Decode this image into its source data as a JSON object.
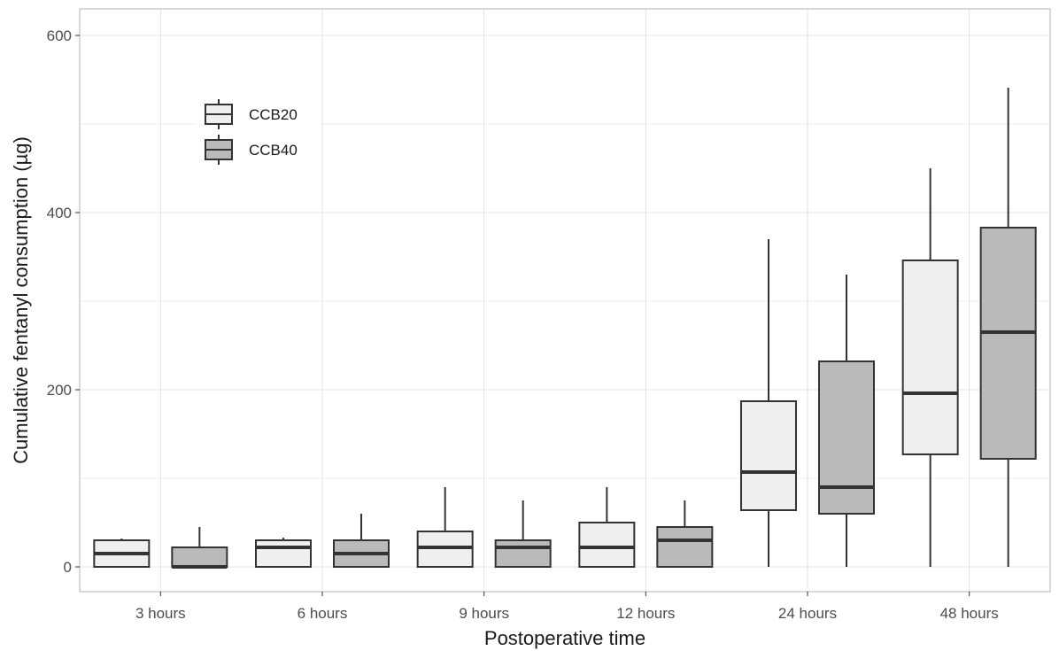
{
  "chart_data": {
    "type": "boxplot",
    "xlabel": "Postoperative time",
    "ylabel": "Cumulative fentanyl consumption (µg)",
    "categories": [
      "3 hours",
      "6 hours",
      "9 hours",
      "12 hours",
      "24 hours",
      "48 hours"
    ],
    "ylim": [
      -28,
      630
    ],
    "yticks": [
      0,
      200,
      400,
      600
    ],
    "grid": true,
    "legend_position": "top-left",
    "series": [
      {
        "name": "CCB20",
        "color": "#efefef",
        "boxes": [
          {
            "min": 0,
            "q1": 0,
            "median": 15,
            "q3": 30,
            "max": 32
          },
          {
            "min": 0,
            "q1": 0,
            "median": 22,
            "q3": 30,
            "max": 33
          },
          {
            "min": 0,
            "q1": 0,
            "median": 22,
            "q3": 40,
            "max": 90
          },
          {
            "min": 0,
            "q1": 0,
            "median": 22,
            "q3": 50,
            "max": 90
          },
          {
            "min": 0,
            "q1": 64,
            "median": 107,
            "q3": 187,
            "max": 370
          },
          {
            "min": 0,
            "q1": 127,
            "median": 196,
            "q3": 346,
            "max": 450
          }
        ]
      },
      {
        "name": "CCB40",
        "color": "#bababa",
        "boxes": [
          {
            "min": 0,
            "q1": 0,
            "median": 0,
            "q3": 22,
            "max": 45
          },
          {
            "min": 0,
            "q1": 0,
            "median": 15,
            "q3": 30,
            "max": 60
          },
          {
            "min": 0,
            "q1": 0,
            "median": 22,
            "q3": 30,
            "max": 75
          },
          {
            "min": 0,
            "q1": 0,
            "median": 30,
            "q3": 45,
            "max": 75
          },
          {
            "min": 0,
            "q1": 60,
            "median": 90,
            "q3": 232,
            "max": 330
          },
          {
            "min": 0,
            "q1": 122,
            "median": 265,
            "q3": 383,
            "max": 541
          }
        ]
      }
    ]
  }
}
